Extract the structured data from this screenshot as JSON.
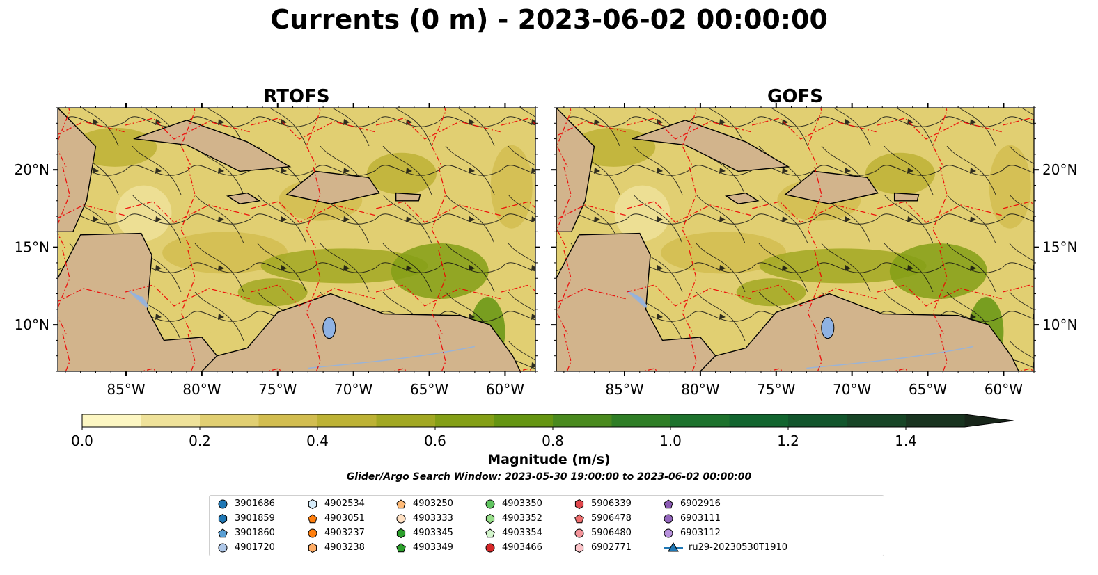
{
  "title": "Currents (0 m) - 2023-06-02 00:00:00",
  "chart_data": [
    {
      "type": "heatmap",
      "title": "RTOFS",
      "variable": "surface current magnitude with streamlines",
      "xlim": [
        -89.5,
        -58
      ],
      "ylim": [
        7,
        24
      ],
      "xticks": [
        -85,
        -80,
        -75,
        -70,
        -65,
        -60
      ],
      "xtick_labels": [
        "85°W",
        "80°W",
        "75°W",
        "70°W",
        "65°W",
        "60°W"
      ],
      "yticks": [
        10,
        15,
        20
      ],
      "ytick_labels": [
        "10°N",
        "15°N",
        "20°N"
      ],
      "ytick_side": "left"
    },
    {
      "type": "heatmap",
      "title": "GOFS",
      "variable": "surface current magnitude with streamlines",
      "xlim": [
        -89.5,
        -58
      ],
      "ylim": [
        7,
        24
      ],
      "xticks": [
        -85,
        -80,
        -75,
        -70,
        -65,
        -60
      ],
      "xtick_labels": [
        "85°W",
        "80°W",
        "75°W",
        "70°W",
        "65°W",
        "60°W"
      ],
      "yticks": [
        10,
        15,
        20
      ],
      "ytick_labels": [
        "10°N",
        "15°N",
        "20°N"
      ],
      "ytick_side": "right"
    }
  ],
  "colorbar": {
    "label": "Magnitude (m/s)",
    "min": 0.0,
    "max": 1.5,
    "extend": "max",
    "ticks": [
      0.0,
      0.2,
      0.4,
      0.6,
      0.8,
      1.0,
      1.2,
      1.4
    ],
    "tick_labels": [
      "0.0",
      "0.2",
      "0.4",
      "0.6",
      "0.8",
      "1.0",
      "1.2",
      "1.4"
    ],
    "colors": [
      "#fdf7c3",
      "#efe29a",
      "#e1cf72",
      "#d2bd50",
      "#bdb235",
      "#a2a823",
      "#849f16",
      "#659512",
      "#4a8a1e",
      "#2f7e26",
      "#1d722d",
      "#12652f",
      "#12552c",
      "#174526",
      "#193420",
      "#18261a"
    ]
  },
  "search_window": "Glider/Argo Search Window: 2023-05-30 19:00:00 to 2023-06-02 00:00:00",
  "legend": [
    {
      "label": "3901686",
      "marker": "circle",
      "color": "#1f77b4"
    },
    {
      "label": "3901859",
      "marker": "hexagon",
      "color": "#1f77b4"
    },
    {
      "label": "3901860",
      "marker": "pentagon",
      "color": "#5a9fd4"
    },
    {
      "label": "4901720",
      "marker": "circle",
      "color": "#aec7e8"
    },
    {
      "label": "4902534",
      "marker": "hexagon",
      "color": "#d6ecfa"
    },
    {
      "label": "4903051",
      "marker": "pentagon",
      "color": "#ff7f0e"
    },
    {
      "label": "4903237",
      "marker": "circle",
      "color": "#ff7f0e"
    },
    {
      "label": "4903238",
      "marker": "hexagon",
      "color": "#ffad66"
    },
    {
      "label": "4903250",
      "marker": "pentagon",
      "color": "#ffbb78"
    },
    {
      "label": "4903333",
      "marker": "circle",
      "color": "#ffe0c2"
    },
    {
      "label": "4903345",
      "marker": "hexagon",
      "color": "#2ca02c"
    },
    {
      "label": "4903349",
      "marker": "pentagon",
      "color": "#2ca02c"
    },
    {
      "label": "4903350",
      "marker": "circle",
      "color": "#5fc45f"
    },
    {
      "label": "4903352",
      "marker": "hexagon",
      "color": "#98df8a"
    },
    {
      "label": "4903354",
      "marker": "pentagon",
      "color": "#d3f5cc"
    },
    {
      "label": "4903466",
      "marker": "circle",
      "color": "#d62728"
    },
    {
      "label": "5906339",
      "marker": "hexagon",
      "color": "#e0474c"
    },
    {
      "label": "5906478",
      "marker": "pentagon",
      "color": "#ef6f6f"
    },
    {
      "label": "5906480",
      "marker": "circle",
      "color": "#f4949a"
    },
    {
      "label": "6902771",
      "marker": "hexagon",
      "color": "#fbc3c8"
    },
    {
      "label": "6902916",
      "marker": "pentagon",
      "color": "#8c5bb5"
    },
    {
      "label": "6903111",
      "marker": "circle",
      "color": "#9467bd"
    },
    {
      "label": "6903112",
      "marker": "circle",
      "color": "#b892dd"
    },
    {
      "label": "ru29-20230530T1910",
      "marker": "triangle-line",
      "color": "#1f77b4"
    }
  ]
}
